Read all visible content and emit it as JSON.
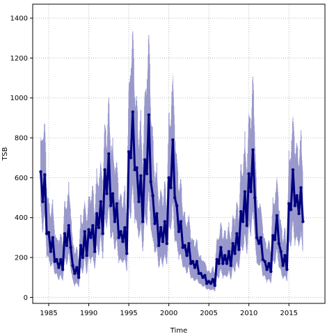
{
  "chart_data": {
    "type": "line",
    "title": "",
    "xlabel": "Time",
    "ylabel": "TSB",
    "xlim": [
      1983.0,
      2019.5
    ],
    "ylim": [
      -30,
      1470
    ],
    "xticks": [
      1985,
      1990,
      1995,
      2000,
      2005,
      2010,
      2015
    ],
    "yticks": [
      0,
      200,
      400,
      600,
      800,
      1000,
      1200,
      1400
    ],
    "grid": true,
    "colors": {
      "line": "#000080",
      "band": "#9999cc",
      "grid": "#bbbbbb"
    },
    "series": [
      {
        "kind": "estimate",
        "x": [
          1984.0,
          1984.25,
          1984.5,
          1984.75,
          1985.0,
          1985.25,
          1985.5,
          1985.75,
          1986.0,
          1986.25,
          1986.5,
          1986.75,
          1987.0,
          1987.25,
          1987.5,
          1987.75,
          1988.0,
          1988.25,
          1988.5,
          1988.75,
          1989.0,
          1989.25,
          1989.5,
          1989.75,
          1990.0,
          1990.25,
          1990.5,
          1990.75,
          1991.0,
          1991.25,
          1991.5,
          1991.75,
          1992.0,
          1992.25,
          1992.5,
          1992.75,
          1993.0,
          1993.25,
          1993.5,
          1993.75,
          1994.0,
          1994.25,
          1994.5,
          1994.75,
          1995.0,
          1995.25,
          1995.5,
          1995.75,
          1996.0,
          1996.25,
          1996.5,
          1996.75,
          1997.0,
          1997.25,
          1997.5,
          1997.75,
          1998.0,
          1998.25,
          1998.5,
          1998.75,
          1999.0,
          1999.25,
          1999.5,
          1999.75,
          2000.0,
          2000.25,
          2000.5,
          2000.75,
          2001.0,
          2001.25,
          2001.5,
          2001.75,
          2002.0,
          2002.25,
          2002.5,
          2002.75,
          2003.0,
          2003.25,
          2003.5,
          2003.75,
          2004.0,
          2004.25,
          2004.5,
          2004.75,
          2005.0,
          2005.25,
          2005.5,
          2005.75,
          2006.0,
          2006.25,
          2006.5,
          2006.75,
          2007.0,
          2007.25,
          2007.5,
          2007.75,
          2008.0,
          2008.25,
          2008.5,
          2008.75,
          2009.0,
          2009.25,
          2009.5,
          2009.75,
          2010.0,
          2010.25,
          2010.5,
          2010.75,
          2011.0,
          2011.25,
          2011.5,
          2011.75,
          2012.0,
          2012.25,
          2012.5,
          2012.75,
          2013.0,
          2013.25,
          2013.5,
          2013.75,
          2014.0,
          2014.25,
          2014.5,
          2014.75,
          2015.0,
          2015.25,
          2015.5,
          2015.75,
          2016.0,
          2016.25,
          2016.5,
          2016.75
        ],
        "y": [
          630,
          480,
          615,
          320,
          325,
          230,
          300,
          180,
          190,
          150,
          190,
          140,
          320,
          260,
          360,
          250,
          160,
          120,
          150,
          100,
          260,
          200,
          330,
          210,
          340,
          300,
          360,
          230,
          420,
          350,
          480,
          320,
          640,
          520,
          720,
          460,
          520,
          380,
          470,
          300,
          330,
          280,
          350,
          220,
          730,
          700,
          930,
          640,
          650,
          480,
          610,
          380,
          690,
          620,
          915,
          580,
          510,
          370,
          420,
          260,
          350,
          280,
          380,
          270,
          600,
          550,
          790,
          500,
          460,
          330,
          380,
          250,
          260,
          210,
          270,
          170,
          180,
          150,
          180,
          120,
          120,
          100,
          110,
          70,
          80,
          70,
          90,
          60,
          190,
          170,
          250,
          170,
          210,
          170,
          230,
          160,
          270,
          220,
          320,
          240,
          430,
          380,
          530,
          360,
          620,
          530,
          740,
          500,
          300,
          270,
          300,
          190,
          180,
          140,
          170,
          130,
          310,
          290,
          410,
          270,
          230,
          160,
          210,
          140,
          470,
          440,
          640,
          460,
          510,
          420,
          550,
          380
        ]
      },
      {
        "kind": "interval-upper",
        "values": [
          810,
          740,
          880,
          520,
          470,
          390,
          470,
          300,
          300,
          260,
          320,
          250,
          470,
          430,
          550,
          400,
          280,
          210,
          250,
          170,
          400,
          350,
          490,
          340,
          510,
          460,
          550,
          380,
          620,
          520,
          690,
          500,
          870,
          730,
          980,
          700,
          760,
          580,
          690,
          470,
          510,
          440,
          540,
          360,
          1080,
          1050,
          1350,
          950,
          970,
          720,
          900,
          580,
          1040,
          980,
          1320,
          900,
          790,
          560,
          640,
          420,
          550,
          440,
          580,
          420,
          890,
          830,
          1130,
          760,
          700,
          510,
          580,
          400,
          410,
          330,
          420,
          280,
          290,
          250,
          280,
          200,
          200,
          170,
          180,
          130,
          130,
          120,
          150,
          110,
          300,
          270,
          380,
          280,
          330,
          280,
          360,
          260,
          420,
          350,
          480,
          370,
          650,
          590,
          790,
          560,
          930,
          810,
          1100,
          780,
          470,
          430,
          460,
          310,
          290,
          230,
          280,
          210,
          480,
          450,
          610,
          420,
          370,
          270,
          340,
          230,
          700,
          660,
          920,
          690,
          760,
          640,
          810,
          580
        ]
      },
      {
        "kind": "interval-lower",
        "values": [
          470,
          330,
          440,
          210,
          210,
          150,
          190,
          120,
          120,
          90,
          120,
          80,
          210,
          160,
          230,
          150,
          90,
          60,
          80,
          50,
          160,
          120,
          210,
          120,
          220,
          180,
          220,
          140,
          270,
          210,
          320,
          200,
          430,
          340,
          490,
          290,
          340,
          240,
          300,
          180,
          200,
          170,
          210,
          130,
          450,
          410,
          590,
          390,
          400,
          290,
          380,
          230,
          420,
          370,
          570,
          340,
          310,
          220,
          260,
          150,
          210,
          160,
          230,
          160,
          370,
          340,
          490,
          290,
          280,
          200,
          230,
          150,
          160,
          120,
          160,
          100,
          100,
          80,
          100,
          70,
          70,
          55,
          60,
          40,
          45,
          35,
          45,
          30,
          110,
          100,
          150,
          100,
          120,
          100,
          140,
          90,
          160,
          130,
          190,
          140,
          270,
          230,
          330,
          220,
          390,
          320,
          460,
          300,
          180,
          160,
          180,
          110,
          110,
          80,
          100,
          70,
          190,
          170,
          250,
          160,
          140,
          90,
          120,
          80,
          290,
          260,
          400,
          270,
          320,
          250,
          340,
          220
        ]
      }
    ]
  }
}
